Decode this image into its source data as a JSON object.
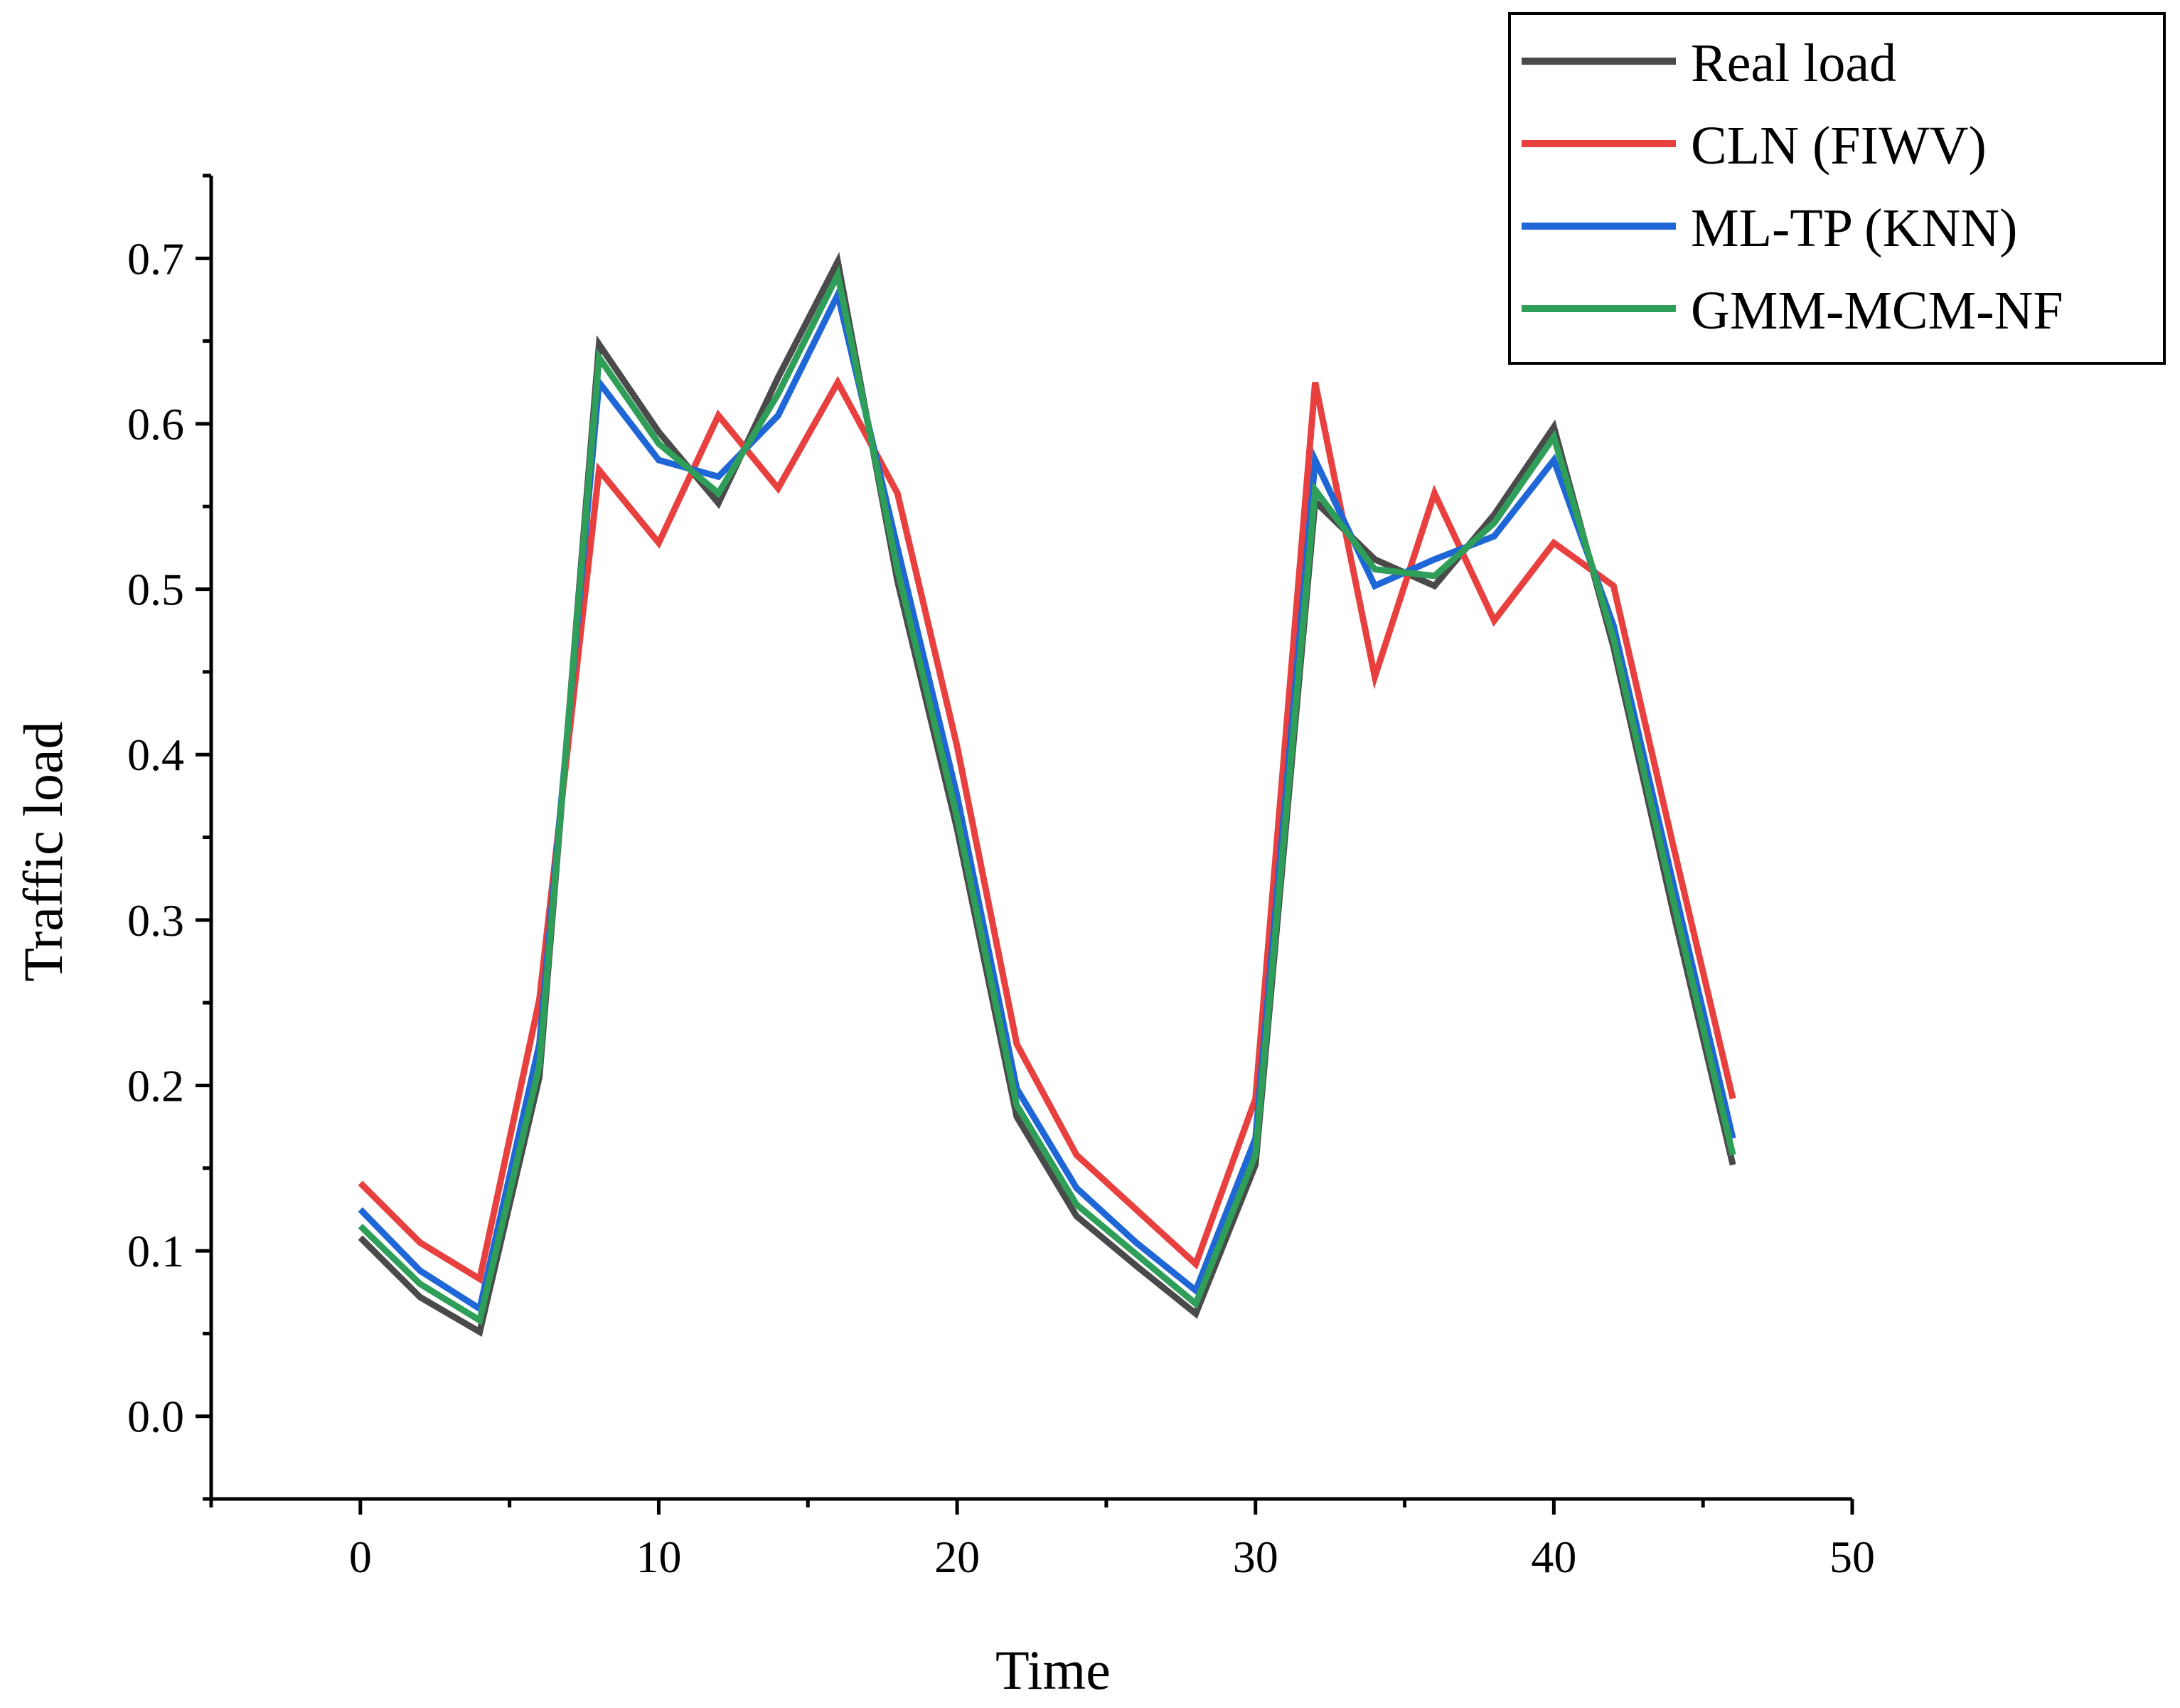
{
  "chart_data": {
    "type": "line",
    "title": "",
    "xlabel": "Time",
    "ylabel": "Traffic load",
    "xlim": [
      -5,
      50
    ],
    "ylim": [
      -0.05,
      0.75
    ],
    "x_ticks": [
      0,
      10,
      20,
      30,
      40,
      50
    ],
    "x_tick_labels": [
      "0",
      "10",
      "20",
      "30",
      "40",
      "50"
    ],
    "y_ticks": [
      0.0,
      0.1,
      0.2,
      0.3,
      0.4,
      0.5,
      0.6,
      0.7
    ],
    "y_tick_labels": [
      "0.0",
      "0.1",
      "0.2",
      "0.3",
      "0.4",
      "0.5",
      "0.6",
      "0.7"
    ],
    "grid": false,
    "legend_position": "top-right",
    "x": [
      0,
      2,
      4,
      6,
      8,
      10,
      12,
      14,
      16,
      18,
      20,
      22,
      24,
      26,
      28,
      30,
      32,
      34,
      36,
      38,
      40,
      42,
      44,
      46
    ],
    "series": [
      {
        "name": "Real load",
        "color": "#4a4a4a",
        "values": [
          0.108,
          0.072,
          0.051,
          0.205,
          0.648,
          0.595,
          0.552,
          0.628,
          0.698,
          0.505,
          0.355,
          0.181,
          0.121,
          0.091,
          0.062,
          0.152,
          0.553,
          0.518,
          0.502,
          0.545,
          0.598,
          0.465,
          0.305,
          0.152
        ]
      },
      {
        "name": "CLN (FIWV)",
        "color": "#e83f3f",
        "values": [
          0.141,
          0.105,
          0.083,
          0.252,
          0.572,
          0.528,
          0.605,
          0.561,
          0.625,
          0.558,
          0.405,
          0.225,
          0.158,
          0.125,
          0.092,
          0.192,
          0.625,
          0.447,
          0.558,
          0.481,
          0.528,
          0.502,
          0.345,
          0.192
        ]
      },
      {
        "name": "ML-TP (KNN)",
        "color": "#1f66d6",
        "values": [
          0.125,
          0.088,
          0.065,
          0.225,
          0.625,
          0.578,
          0.568,
          0.605,
          0.678,
          0.525,
          0.375,
          0.198,
          0.138,
          0.105,
          0.076,
          0.168,
          0.578,
          0.502,
          0.518,
          0.532,
          0.578,
          0.478,
          0.322,
          0.168
        ]
      },
      {
        "name": "GMM-MCM-NF",
        "color": "#2f9e58",
        "values": [
          0.115,
          0.08,
          0.058,
          0.212,
          0.64,
          0.588,
          0.558,
          0.618,
          0.69,
          0.512,
          0.362,
          0.188,
          0.128,
          0.098,
          0.068,
          0.158,
          0.56,
          0.512,
          0.508,
          0.54,
          0.592,
          0.47,
          0.312,
          0.158
        ]
      }
    ]
  }
}
